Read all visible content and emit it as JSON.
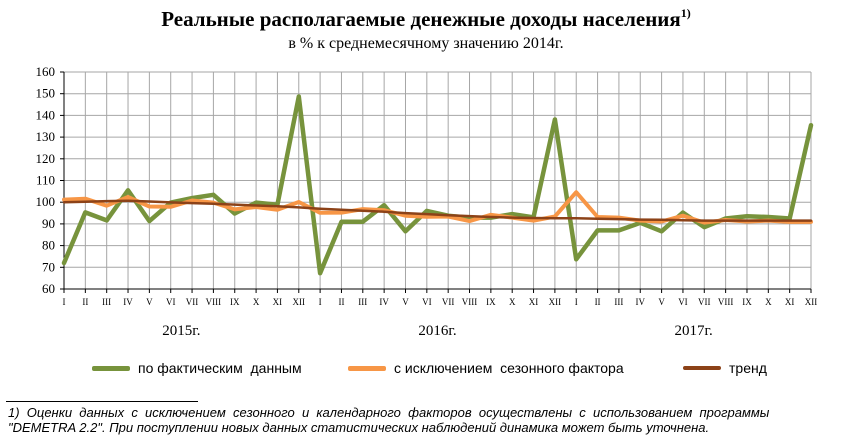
{
  "header": {
    "title": "Реальные располагаемые денежные доходы населения",
    "title_sup": "1)",
    "subtitle": "в % к среднемесячному значению 2014г."
  },
  "chart_data": {
    "type": "line",
    "title": "Реальные располагаемые денежные доходы населения",
    "subtitle": "в % к среднемесячному значению 2014г.",
    "ylim": [
      60,
      160
    ],
    "yticks": [
      60,
      70,
      80,
      90,
      100,
      110,
      120,
      130,
      140,
      150,
      160
    ],
    "grid": true,
    "legend_position": "bottom",
    "x_months": [
      "I",
      "II",
      "III",
      "IV",
      "V",
      "VI",
      "VII",
      "VIII",
      "IX",
      "X",
      "XI",
      "XII",
      "I",
      "II",
      "III",
      "IV",
      "V",
      "VI",
      "VII",
      "VIII",
      "IX",
      "X",
      "XI",
      "XII",
      "I",
      "II",
      "III",
      "IV",
      "V",
      "VI",
      "VII",
      "VIII",
      "IX",
      "X",
      "XI",
      "XII"
    ],
    "x_years": [
      "2015г.",
      "2016г.",
      "2017г."
    ],
    "series": [
      {
        "name": "по фактическим  данным",
        "color": "#77933c",
        "values": [
          72.0,
          95.3,
          91.6,
          105.5,
          91.3,
          99.8,
          101.9,
          103.4,
          94.8,
          99.8,
          98.8,
          148.7,
          67.3,
          91.0,
          91.0,
          98.6,
          86.6,
          96.0,
          93.8,
          92.8,
          92.9,
          94.5,
          93.0,
          138.1,
          73.7,
          87.0,
          87.0,
          90.5,
          86.6,
          95.2,
          88.5,
          92.5,
          93.5,
          93.2,
          92.5,
          135.5
        ]
      },
      {
        "name": "с исключением  сезонного фактора",
        "color": "#f79646",
        "values": [
          101.2,
          101.6,
          98.4,
          102.4,
          98.0,
          97.9,
          100.8,
          99.8,
          96.7,
          97.8,
          96.5,
          100.1,
          95.1,
          95.2,
          96.8,
          96.3,
          93.8,
          93.3,
          93.4,
          91.3,
          94.2,
          92.9,
          91.5,
          93.4,
          104.6,
          93.2,
          92.9,
          91.5,
          91.1,
          93.8,
          90.6,
          91.8,
          91.1,
          91.5,
          90.9,
          90.9
        ]
      },
      {
        "name": "тренд",
        "color": "#8c4218",
        "values": [
          100.0,
          100.2,
          100.5,
          100.7,
          100.3,
          99.9,
          99.6,
          99.3,
          98.9,
          98.5,
          98.1,
          97.6,
          97.0,
          96.5,
          96.1,
          95.6,
          95.0,
          94.5,
          94.0,
          93.6,
          93.2,
          92.9,
          92.7,
          92.6,
          92.6,
          92.4,
          92.2,
          92.0,
          91.9,
          91.7,
          91.5,
          91.5,
          91.5,
          91.5,
          91.5,
          91.5
        ]
      }
    ]
  },
  "footnote": {
    "line1": "1)  Оценки  данных  с  исключением  сезонного  и  календарного  факторов  осуществлены  с  использованием  программы",
    "line2": "\"DEMETRA 2.2\". При поступлении новых данных статистических наблюдений динамика может быть уточнена."
  }
}
